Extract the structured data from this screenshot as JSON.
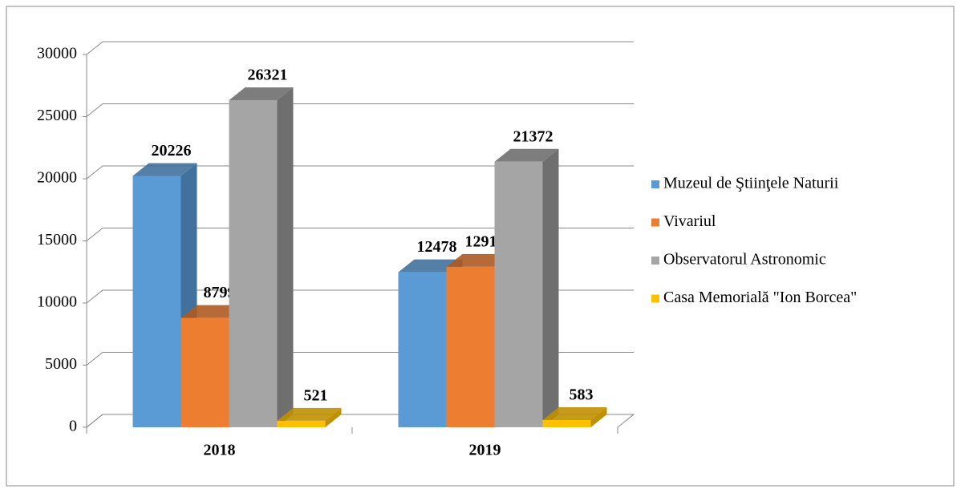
{
  "chart_data": {
    "type": "bar3d",
    "categories": [
      "2018",
      "2019"
    ],
    "series": [
      {
        "name": "Muzeul de Ştiinţele Naturii",
        "color": "#5b9bd5",
        "side": "#41719c",
        "values": [
          20226,
          12478
        ]
      },
      {
        "name": "Vivariul",
        "color": "#ed7d31",
        "side": "#ae5a21",
        "values": [
          8799,
          12915
        ]
      },
      {
        "name": "Observatorul Astronomic",
        "color": "#a5a5a5",
        "side": "#6f6f6f",
        "values": [
          26321,
          21372
        ]
      },
      {
        "name": "Casa Memorială \"Ion Borcea\"",
        "color": "#ffc000",
        "side": "#bf9000",
        "values": [
          521,
          583
        ]
      }
    ],
    "ylim": [
      0,
      30000
    ],
    "yticks": [
      0,
      5000,
      10000,
      15000,
      20000,
      25000,
      30000
    ],
    "grid": true,
    "legend": "right"
  }
}
